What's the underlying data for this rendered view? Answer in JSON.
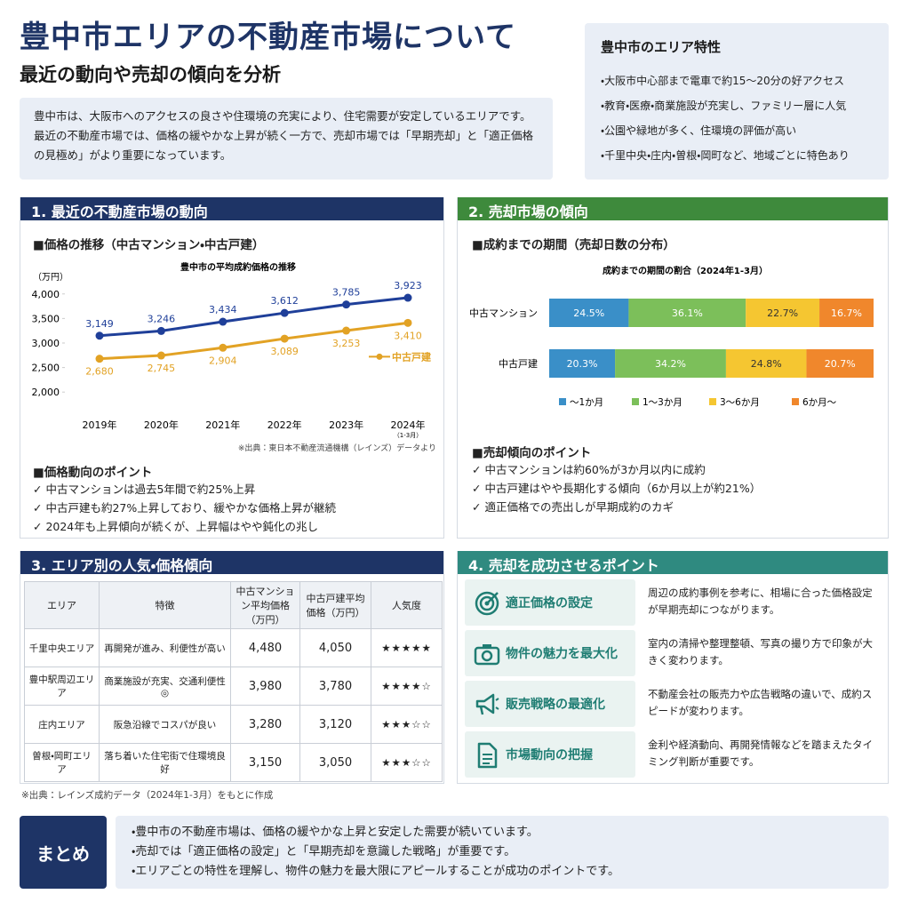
{
  "header": {
    "title": "豊中市エリアの不動産市場について",
    "subtitle": "最近の動向や売却の傾向を分析",
    "intro": [
      "豊中市は、大阪市へのアクセスの良さや住環境の充実により、住宅需要が安定しているエリアです。",
      "最近の不動産市場では、価格の緩やかな上昇が続く一方で、売却市場では「早期売却」と「適正価格の見極め」がより重要になっています。"
    ]
  },
  "features": {
    "title": "豊中市のエリア特性",
    "items": [
      "大阪市中心部まで電車で約15〜20分の好アクセス",
      "教育・医療・商業施設が充実し、ファミリー層に人気",
      "公園や緑地が多く、住環境の評価が高い",
      "千里中央・庄内・曽根・岡町など、地域ごとに特色あり"
    ]
  },
  "section1": {
    "heading": "1. 最近の不動産市場の動向",
    "subheading": "■価格の推移（中古マンション・中古戸建）",
    "chart": {
      "type": "line",
      "title": "豊中市の平均成約価格の推移",
      "y_label": "（万円）",
      "categories": [
        "2019年",
        "2020年",
        "2021年",
        "2022年",
        "2023年",
        "2024年"
      ],
      "x_note": "（1-3月）",
      "series": [
        {
          "color": "#1f3f99",
          "values": [
            3149,
            3246,
            3434,
            3612,
            3785,
            3923
          ],
          "value_labels": [
            "3,149",
            "3,246",
            "3,434",
            "3,612",
            "3,785",
            "3,923"
          ]
        },
        {
          "name": "中古戸建",
          "color": "#e2a224",
          "values": [
            2680,
            2745,
            2904,
            3089,
            3253,
            3410
          ],
          "value_labels": [
            "2,680",
            "2,745",
            "2,904",
            "3,089",
            "3,253",
            "3,410"
          ]
        }
      ],
      "ylim": [
        1750,
        4050
      ],
      "yticks": [
        {
          "value": 2000,
          "label": "2,000"
        },
        {
          "value": 2500,
          "label": "2,500"
        },
        {
          "value": 3000,
          "label": "3,000"
        },
        {
          "value": 3500,
          "label": "3,500"
        },
        {
          "value": 4000,
          "label": "4,000"
        }
      ],
      "grid": false,
      "source": "※出典：東日本不動産流通機構（レインズ）データより"
    },
    "points_title": "■価格動向のポイント",
    "points": [
      "中古マンションは過去5年間で約25%上昇",
      "中古戸建も約27%上昇しており、緩やかな価格上昇が継続",
      "2024年も上昇傾向が続くが、上昇幅はやや鈍化の兆し"
    ]
  },
  "section2": {
    "heading": "2. 売却市場の傾向",
    "subheading": "■成約までの期間（売却日数の分布）",
    "chart": {
      "type": "bar",
      "orientation": "horizontal",
      "stacked": true,
      "title": "成約までの期間の割合（2024年1-3月）",
      "categories": [
        "中古マンション",
        "中古戸建"
      ],
      "xlim": [
        0,
        100
      ],
      "series": [
        {
          "name": "〜1か月",
          "color": "#3a8fc8",
          "values": [
            24.5,
            20.3
          ],
          "value_labels": [
            "24.5%",
            "20.3%"
          ]
        },
        {
          "name": "1〜3か月",
          "color": "#7cbf5a",
          "values": [
            36.1,
            34.2
          ],
          "value_labels": [
            "36.1%",
            "34.2%"
          ]
        },
        {
          "name": "3〜6か月",
          "color": "#f5c631",
          "values": [
            22.7,
            24.8
          ],
          "value_labels": [
            "22.7%",
            "24.8%"
          ]
        },
        {
          "name": "6か月〜",
          "color": "#f0872c",
          "values": [
            16.7,
            20.7
          ],
          "value_labels": [
            "16.7%",
            "20.7%"
          ]
        }
      ]
    },
    "points_title": "■売却傾向のポイント",
    "points": [
      "中古マンションは約60%が3か月以内に成約",
      "中古戸建はやや長期化する傾向（6か月以上が約21%）",
      "適正価格での売出しが早期成約のカギ"
    ]
  },
  "section3": {
    "heading": "3. エリア別の人気・価格傾向",
    "table": {
      "headers": [
        "エリア",
        "特徴",
        "中古マンション平均価格（万円）",
        "中古戸建平均価格（万円）",
        "人気度"
      ],
      "rows": [
        [
          "千里中央エリア",
          "再開発が進み、利便性が高い",
          "4,480",
          "4,050",
          "★★★★★"
        ],
        [
          "豊中駅周辺エリア",
          "商業施設が充実、交通利便性◎",
          "3,980",
          "3,780",
          "★★★★☆"
        ],
        [
          "庄内エリア",
          "阪急沿線でコスパが良い",
          "3,280",
          "3,120",
          "★★★☆☆"
        ],
        [
          "曽根・岡町エリア",
          "落ち着いた住宅街で住環境良好",
          "3,150",
          "3,050",
          "★★★☆☆"
        ]
      ]
    },
    "source": "※出典：レインズ成約データ（2024年1-3月）をもとに作成"
  },
  "section4": {
    "heading": "4. 売却を成功させるポイント",
    "items": [
      {
        "title": "適正価格の設定",
        "text": "周辺の成約事例を参考に、相場に合った価格設定が早期売却につながります。"
      },
      {
        "title": "物件の魅力を最大化",
        "text": "室内の清掃や整理整頓、写真の撮り方で印象が大きく変わります。"
      },
      {
        "title": "販売戦略の最適化",
        "text": "不動産会社の販売力や広告戦略の違いで、成約スピードが変わります。"
      },
      {
        "title": "市場動向の把握",
        "text": "金利や経済動向、再開発情報などを踏まえたタイミング判断が重要です。"
      }
    ]
  },
  "summary": {
    "label": "まとめ",
    "items": [
      "豊中市の不動産市場は、価格の緩やかな上昇と安定した需要が続いています。",
      "売却では「適正価格の設定」と「早期売却を意識した戦略」が重要です。",
      "エリアごとの特性を理解し、物件の魅力を最大限にアピールすることが成功のポイントです。"
    ]
  }
}
